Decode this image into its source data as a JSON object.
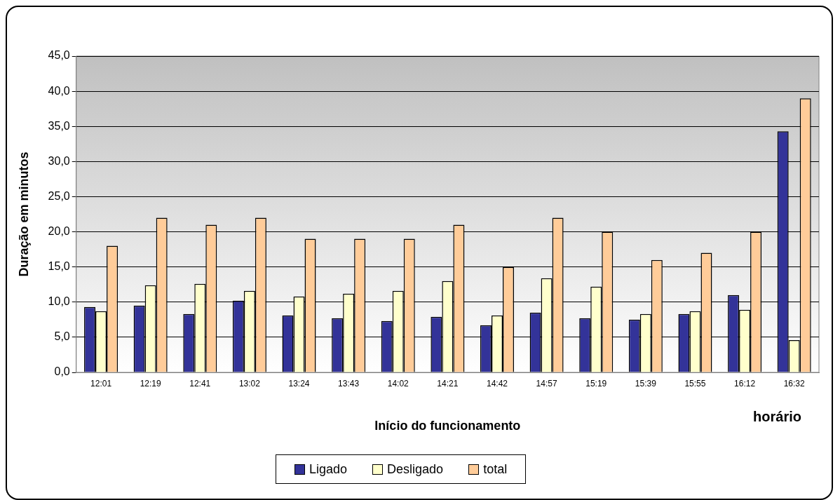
{
  "chart_data": {
    "type": "bar",
    "xlabel": "Início do funcionamento",
    "ylabel": "Duração em minutos",
    "annotations": [
      "horário"
    ],
    "categories": [
      "12:01",
      "12:19",
      "12:41",
      "13:02",
      "13:24",
      "13:43",
      "14:02",
      "14:21",
      "14:42",
      "14:57",
      "15:19",
      "15:39",
      "15:55",
      "16:12",
      "16:32"
    ],
    "series": [
      {
        "name": "Ligado",
        "color": "#333399",
        "values": [
          9.3,
          9.5,
          8.3,
          10.2,
          8.1,
          7.7,
          7.3,
          7.9,
          6.7,
          8.5,
          7.7,
          7.5,
          8.3,
          11.0,
          34.3
        ]
      },
      {
        "name": "Desligado",
        "color": "#ffffcc",
        "values": [
          8.7,
          12.4,
          12.6,
          11.6,
          10.8,
          11.2,
          11.6,
          13.0,
          8.1,
          13.4,
          12.2,
          8.3,
          8.7,
          8.9,
          4.6
        ]
      },
      {
        "name": "total",
        "color": "#ffcc99",
        "values": [
          18,
          22,
          21,
          22,
          19,
          19,
          19,
          21,
          15,
          22,
          20,
          16,
          17,
          20,
          39
        ]
      }
    ],
    "ylim": [
      0,
      45
    ],
    "yticks": [
      {
        "value": 0,
        "label": "0,0"
      },
      {
        "value": 5,
        "label": "5,0"
      },
      {
        "value": 10,
        "label": "10,0"
      },
      {
        "value": 15,
        "label": "15,0"
      },
      {
        "value": 20,
        "label": "20,0"
      },
      {
        "value": 25,
        "label": "25,0"
      },
      {
        "value": 30,
        "label": "30,0"
      },
      {
        "value": 35,
        "label": "35,0"
      },
      {
        "value": 40,
        "label": "40,0"
      },
      {
        "value": 45,
        "label": "45,0"
      }
    ],
    "grid": "y",
    "legend": "bottom"
  }
}
